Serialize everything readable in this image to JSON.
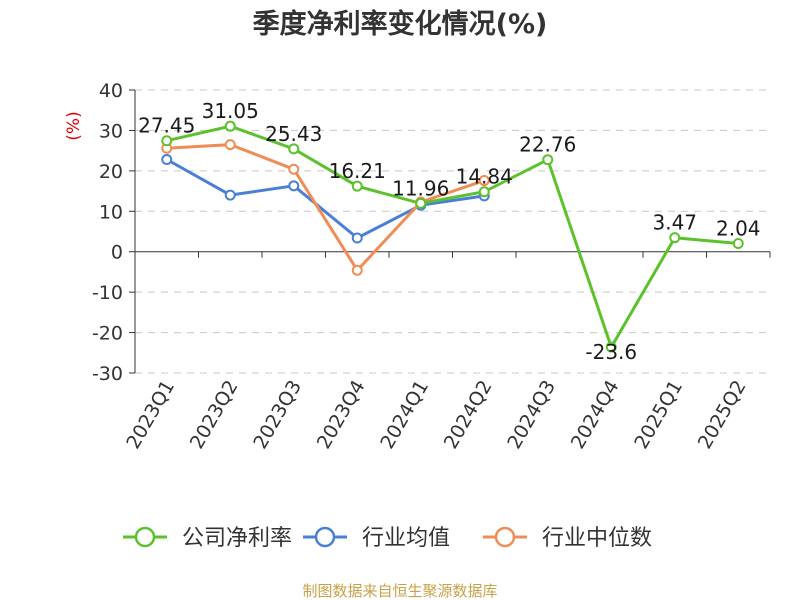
{
  "chart_data": {
    "type": "line",
    "title": "季度净利率变化情况(%)",
    "unit_label": "(%)",
    "categories": [
      "2023Q1",
      "2023Q2",
      "2023Q3",
      "2023Q4",
      "2024Q1",
      "2024Q2",
      "2024Q3",
      "2024Q4",
      "2025Q1",
      "2025Q2"
    ],
    "ylim": [
      -30,
      40
    ],
    "yticks": [
      40,
      30,
      20,
      10,
      0,
      -10,
      -20,
      -30
    ],
    "ytick_labels": [
      "40",
      "30",
      "20",
      "10",
      "0",
      "-10",
      "-20",
      "-30"
    ],
    "grid": true,
    "legend_position": "bottom",
    "series": [
      {
        "name": "公司净利率",
        "color": "#5cc22c",
        "values": [
          27.45,
          31.05,
          25.43,
          16.21,
          11.96,
          14.84,
          22.76,
          -23.6,
          3.47,
          2.04
        ],
        "labels": [
          "27.45",
          "31.05",
          "25.43",
          "16.21",
          "11.96",
          "14.84",
          "22.76",
          "-23.6",
          "3.47",
          "2.04"
        ]
      },
      {
        "name": "行业均值",
        "color": "#4a7fd6",
        "values": [
          22.8,
          14.0,
          16.3,
          3.4,
          11.5,
          13.8,
          null,
          null,
          null,
          null
        ]
      },
      {
        "name": "行业中位数",
        "color": "#f08c55",
        "values": [
          25.6,
          26.5,
          20.4,
          -4.6,
          12.3,
          17.6,
          null,
          null,
          null,
          null
        ]
      }
    ]
  },
  "footer": {
    "source": "制图数据来自恒生聚源数据库"
  }
}
